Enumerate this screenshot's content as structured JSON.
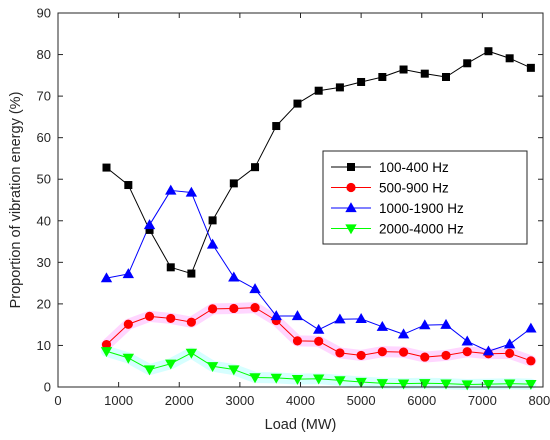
{
  "chart_data": {
    "type": "line",
    "xlabel": "Load (MW)",
    "ylabel": "Proportion of vibration energy (%)",
    "xlim": [
      0,
      8000
    ],
    "ylim": [
      0,
      90
    ],
    "xticks": [
      "0",
      "1000",
      "2000",
      "3000",
      "4000",
      "5000",
      "6000",
      "7000",
      "8000"
    ],
    "yticks": [
      "0",
      "10",
      "20",
      "30",
      "40",
      "50",
      "60",
      "70",
      "80",
      "90"
    ],
    "grid": false,
    "legend_position": "center-right",
    "x": [
      800,
      1160,
      1510,
      1860,
      2200,
      2550,
      2900,
      3250,
      3600,
      3950,
      4300,
      4650,
      5000,
      5350,
      5700,
      6050,
      6400,
      6750,
      7100,
      7450,
      7800
    ],
    "series": [
      {
        "name": "100-400 Hz",
        "marker": "square",
        "color": "#000000",
        "values": [
          52.8,
          48.6,
          37.8,
          28.8,
          27.3,
          40.1,
          49.0,
          52.9,
          62.8,
          68.2,
          71.3,
          72.1,
          73.4,
          74.6,
          76.4,
          75.4,
          74.6,
          77.9,
          80.8,
          79.1,
          76.8
        ]
      },
      {
        "name": "500-900 Hz",
        "marker": "circle",
        "color": "#ff0000",
        "band_color": "#ff00ff",
        "values": [
          10.2,
          15.1,
          17.0,
          16.5,
          15.6,
          18.8,
          18.9,
          19.1,
          16.0,
          11.1,
          11.0,
          8.2,
          7.6,
          8.5,
          8.4,
          7.2,
          7.6,
          8.5,
          8.0,
          8.1,
          6.3
        ]
      },
      {
        "name": "1000-1900 Hz",
        "marker": "triangle-up",
        "color": "#0000ff",
        "values": [
          26.2,
          27.2,
          39.0,
          47.3,
          46.8,
          34.3,
          26.4,
          23.6,
          17.1,
          17.1,
          13.8,
          16.3,
          16.4,
          14.5,
          12.7,
          14.9,
          15.0,
          11.0,
          8.6,
          10.3,
          14.1
        ]
      },
      {
        "name": "2000-4000 Hz",
        "marker": "triangle-down",
        "color": "#00ff00",
        "band_color": "#00ffff",
        "values": [
          8.6,
          7.0,
          4.2,
          5.6,
          8.2,
          5.0,
          4.2,
          2.3,
          2.2,
          1.9,
          2.0,
          1.6,
          1.2,
          0.9,
          0.8,
          0.9,
          0.8,
          0.6,
          0.7,
          0.8,
          0.7
        ]
      }
    ]
  }
}
